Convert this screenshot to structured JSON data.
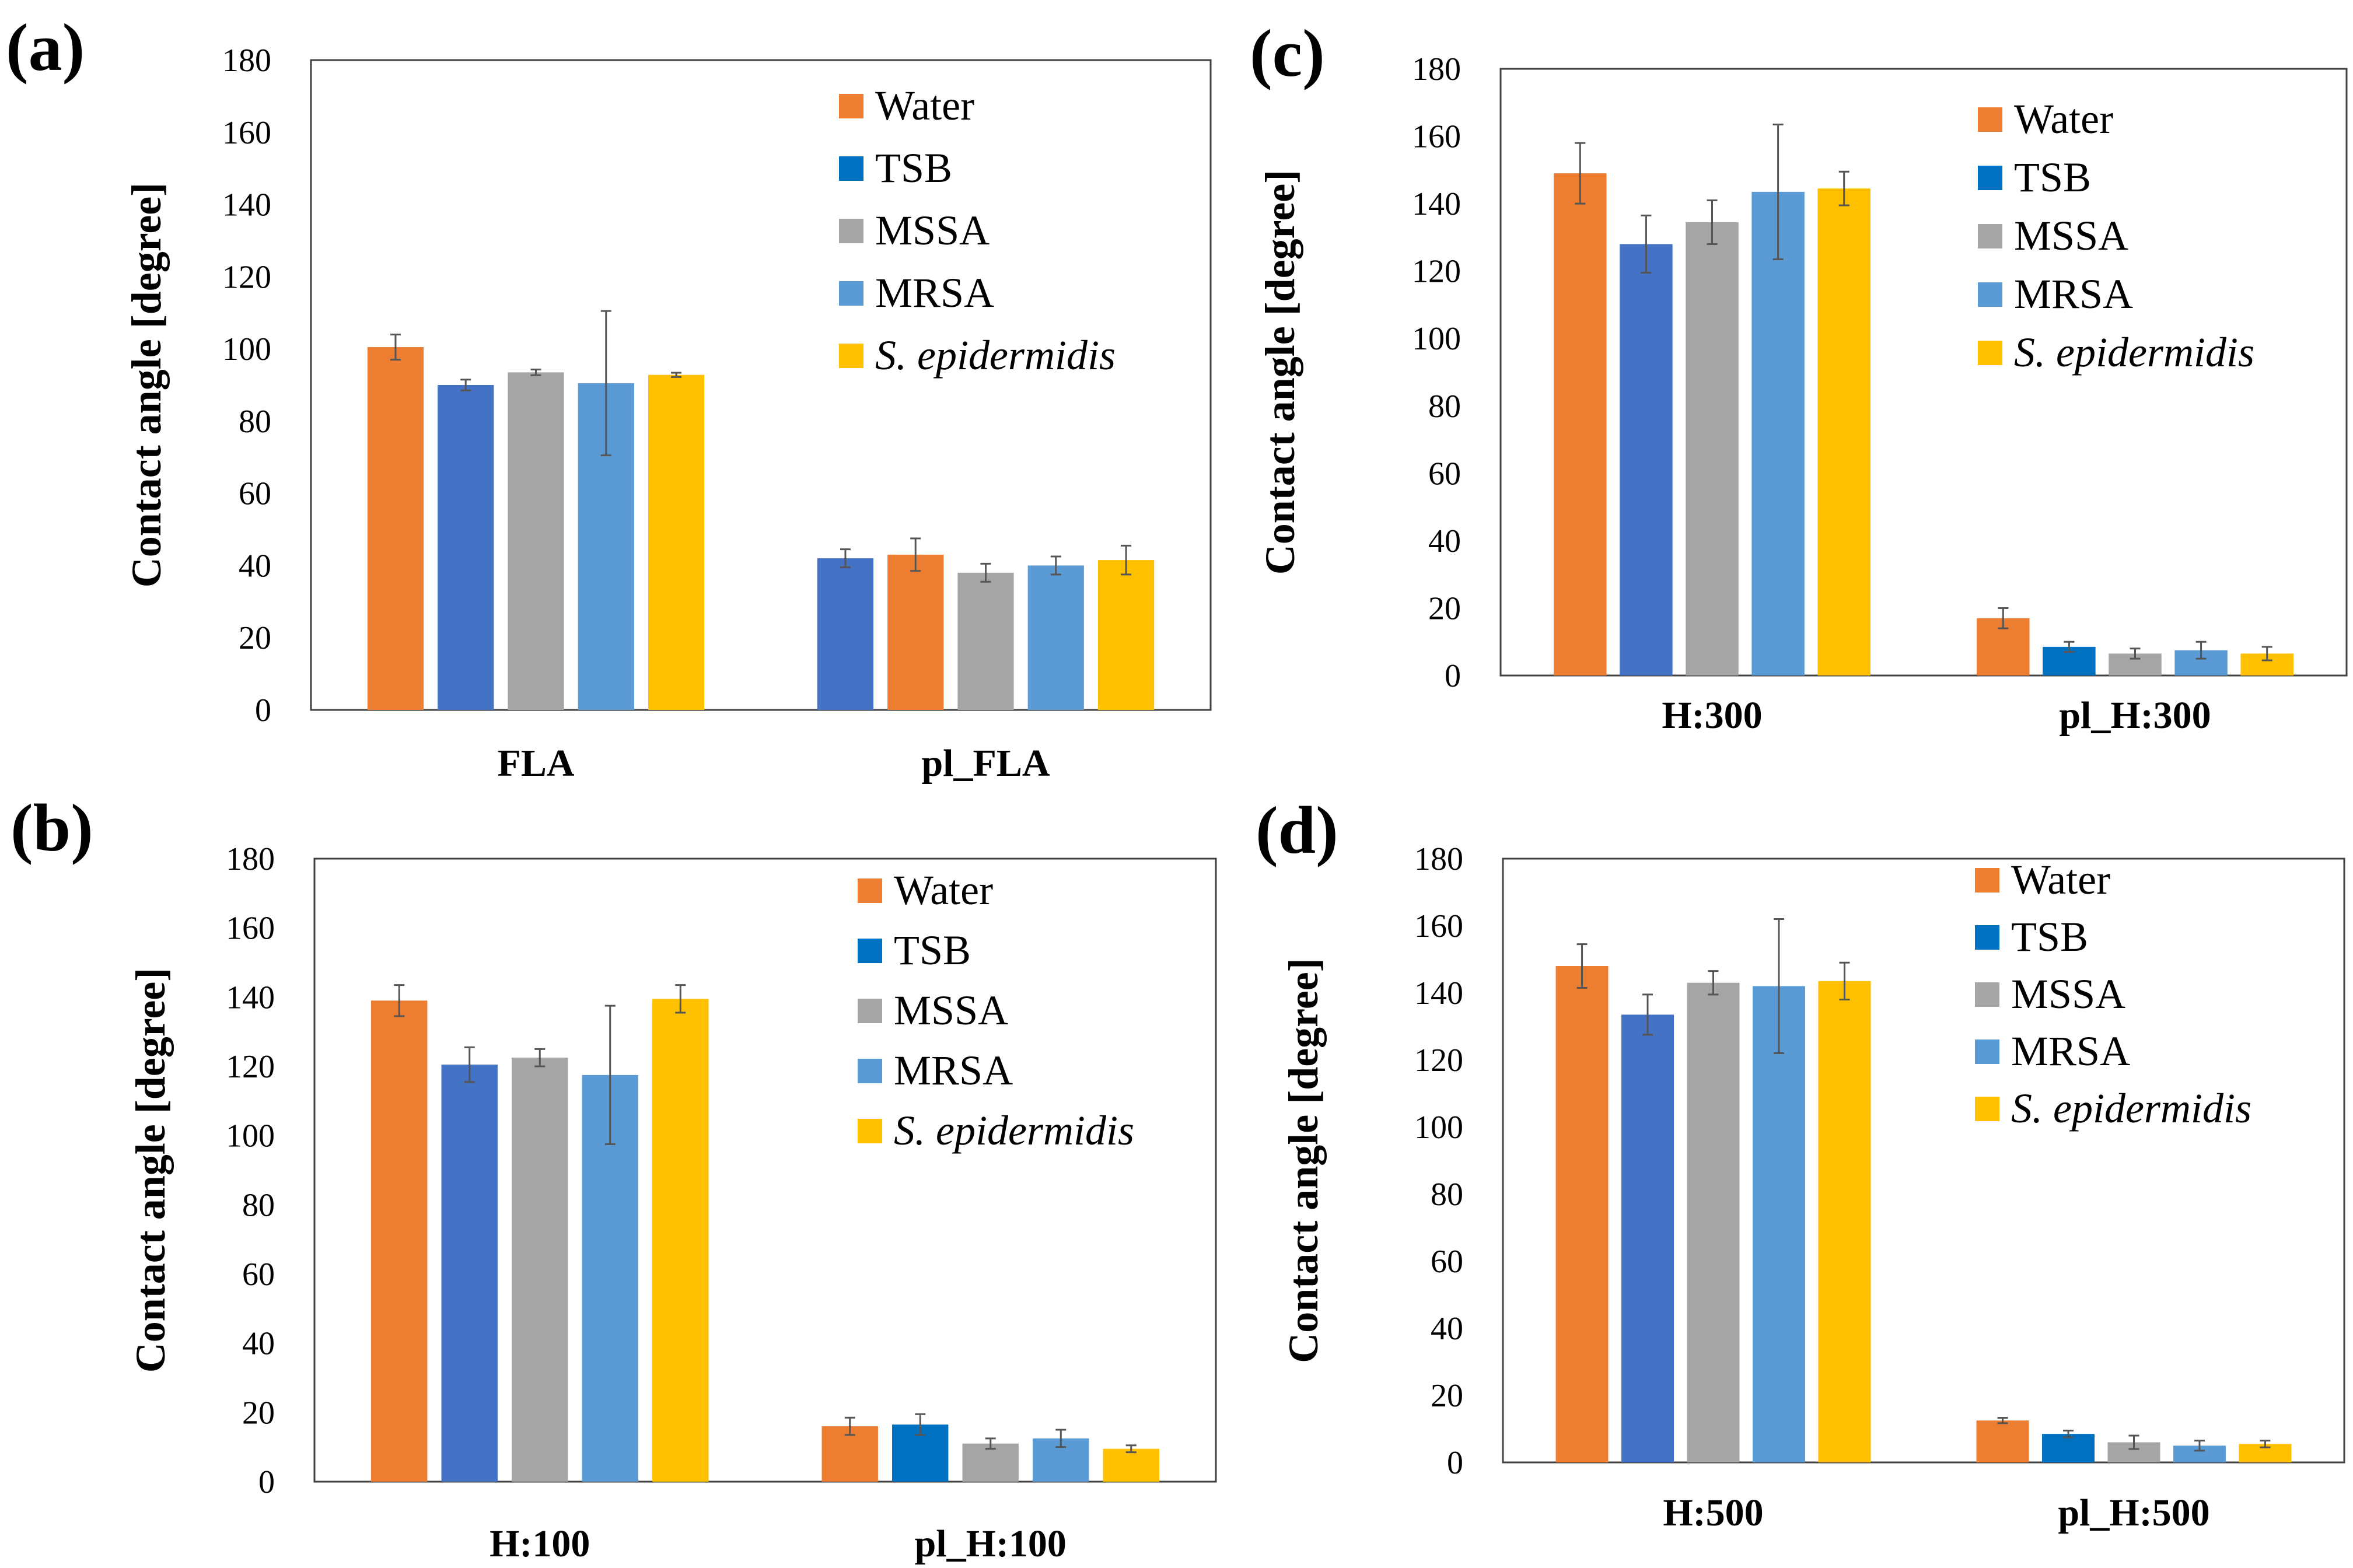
{
  "chart_data": [
    {
      "id": "a",
      "panel_label": "(a)",
      "type": "bar",
      "categories": [
        "FLA",
        "pl_FLA"
      ],
      "ylabel": "Contact angle [degree]",
      "xlabel": "",
      "ylim": [
        0,
        180
      ],
      "yticks": [
        0,
        20,
        40,
        60,
        80,
        100,
        120,
        140,
        160,
        180
      ],
      "legend_position": "top-right",
      "grid": false,
      "bars": [
        [
          {
            "series": "Water",
            "color": "#ED7D31",
            "value": 100.5,
            "error": 3.5
          },
          {
            "series": "TSB",
            "color": "#4472C4",
            "value": 90,
            "error": 1.5
          },
          {
            "series": "MSSA",
            "color": "#A5A5A5",
            "value": 93.5,
            "error": 0.8
          },
          {
            "series": "MRSA",
            "color": "#5B9BD5",
            "value": 90.5,
            "error": 20
          },
          {
            "series": "S. epidermidis",
            "color": "#FFC000",
            "value": 92.8,
            "error": 0.6
          }
        ],
        [
          {
            "series": "TSB",
            "color": "#4472C4",
            "value": 42,
            "error": 2.5
          },
          {
            "series": "Water",
            "color": "#ED7D31",
            "value": 43,
            "error": 4.5
          },
          {
            "series": "MSSA",
            "color": "#A5A5A5",
            "value": 38,
            "error": 2.5
          },
          {
            "series": "MRSA",
            "color": "#5B9BD5",
            "value": 40,
            "error": 2.5
          },
          {
            "series": "S. epidermidis",
            "color": "#FFC000",
            "value": 41.5,
            "error": 4
          }
        ]
      ],
      "legend": [
        {
          "label": "Water",
          "color": "#ED7D31",
          "italic": false
        },
        {
          "label": "TSB",
          "color": "#0070C0",
          "italic": false
        },
        {
          "label": "MSSA",
          "color": "#A5A5A5",
          "italic": false
        },
        {
          "label": "MRSA",
          "color": "#5B9BD5",
          "italic": false
        },
        {
          "label": "S. epidermidis",
          "color": "#FFC000",
          "italic": true
        }
      ]
    },
    {
      "id": "b",
      "panel_label": "(b)",
      "type": "bar",
      "categories": [
        "H:100",
        "pl_H:100"
      ],
      "ylabel": "Contact angle [degree]",
      "xlabel": "",
      "ylim": [
        0,
        180
      ],
      "yticks": [
        0,
        20,
        40,
        60,
        80,
        100,
        120,
        140,
        160,
        180
      ],
      "legend_position": "top-right",
      "grid": false,
      "bars": [
        [
          {
            "series": "Water",
            "color": "#ED7D31",
            "value": 139,
            "error": 4.5
          },
          {
            "series": "TSB",
            "color": "#4472C4",
            "value": 120.5,
            "error": 5
          },
          {
            "series": "MSSA",
            "color": "#A5A5A5",
            "value": 122.5,
            "error": 2.5
          },
          {
            "series": "MRSA",
            "color": "#5B9BD5",
            "value": 117.5,
            "error": 20
          },
          {
            "series": "S. epidermidis",
            "color": "#FFC000",
            "value": 139.5,
            "error": 4
          }
        ],
        [
          {
            "series": "Water",
            "color": "#ED7D31",
            "value": 16,
            "error": 2.5
          },
          {
            "series": "TSB",
            "color": "#0070C0",
            "value": 16.5,
            "error": 3
          },
          {
            "series": "MSSA",
            "color": "#A5A5A5",
            "value": 11,
            "error": 1.5
          },
          {
            "series": "MRSA",
            "color": "#5B9BD5",
            "value": 12.5,
            "error": 2.5
          },
          {
            "series": "S. epidermidis",
            "color": "#FFC000",
            "value": 9.5,
            "error": 1
          }
        ]
      ],
      "legend": [
        {
          "label": "Water",
          "color": "#ED7D31",
          "italic": false
        },
        {
          "label": "TSB",
          "color": "#0070C0",
          "italic": false
        },
        {
          "label": "MSSA",
          "color": "#A5A5A5",
          "italic": false
        },
        {
          "label": "MRSA",
          "color": "#5B9BD5",
          "italic": false
        },
        {
          "label": "S. epidermidis",
          "color": "#FFC000",
          "italic": true
        }
      ]
    },
    {
      "id": "c",
      "panel_label": "(c)",
      "type": "bar",
      "categories": [
        "H:300",
        "pl_H:300"
      ],
      "ylabel": "Contact angle [degree]",
      "xlabel": "",
      "ylim": [
        0,
        180
      ],
      "yticks": [
        0,
        20,
        40,
        60,
        80,
        100,
        120,
        140,
        160,
        180
      ],
      "legend_position": "top-right",
      "grid": false,
      "bars": [
        [
          {
            "series": "Water",
            "color": "#ED7D31",
            "value": 149,
            "error": 9
          },
          {
            "series": "TSB",
            "color": "#4472C4",
            "value": 128,
            "error": 8.5
          },
          {
            "series": "MSSA",
            "color": "#A5A5A5",
            "value": 134.5,
            "error": 6.5
          },
          {
            "series": "MRSA",
            "color": "#5B9BD5",
            "value": 143.5,
            "error": 20
          },
          {
            "series": "S. epidermidis",
            "color": "#FFC000",
            "value": 144.5,
            "error": 5
          }
        ],
        [
          {
            "series": "Water",
            "color": "#ED7D31",
            "value": 17,
            "error": 3
          },
          {
            "series": "TSB",
            "color": "#0070C0",
            "value": 8.5,
            "error": 1.5
          },
          {
            "series": "MSSA",
            "color": "#A5A5A5",
            "value": 6.5,
            "error": 1.5
          },
          {
            "series": "MRSA",
            "color": "#5B9BD5",
            "value": 7.5,
            "error": 2.5
          },
          {
            "series": "S. epidermidis",
            "color": "#FFC000",
            "value": 6.5,
            "error": 2
          }
        ]
      ],
      "legend": [
        {
          "label": "Water",
          "color": "#ED7D31",
          "italic": false
        },
        {
          "label": "TSB",
          "color": "#0070C0",
          "italic": false
        },
        {
          "label": "MSSA",
          "color": "#A5A5A5",
          "italic": false
        },
        {
          "label": "MRSA",
          "color": "#5B9BD5",
          "italic": false
        },
        {
          "label": "S. epidermidis",
          "color": "#FFC000",
          "italic": true
        }
      ]
    },
    {
      "id": "d",
      "panel_label": "(d)",
      "type": "bar",
      "categories": [
        "H:500",
        "pl_H:500"
      ],
      "ylabel": "Contact angle [degree]",
      "xlabel": "",
      "ylim": [
        0,
        180
      ],
      "yticks": [
        0,
        20,
        40,
        60,
        80,
        100,
        120,
        140,
        160,
        180
      ],
      "legend_position": "top-right",
      "grid": false,
      "bars": [
        [
          {
            "series": "Water",
            "color": "#ED7D31",
            "value": 148,
            "error": 6.5
          },
          {
            "series": "TSB",
            "color": "#4472C4",
            "value": 133.5,
            "error": 6
          },
          {
            "series": "MSSA",
            "color": "#A5A5A5",
            "value": 143,
            "error": 3.5
          },
          {
            "series": "MRSA",
            "color": "#5B9BD5",
            "value": 142,
            "error": 20
          },
          {
            "series": "S. epidermidis",
            "color": "#FFC000",
            "value": 143.5,
            "error": 5.5
          }
        ],
        [
          {
            "series": "Water",
            "color": "#ED7D31",
            "value": 12.5,
            "error": 0.8
          },
          {
            "series": "TSB",
            "color": "#0070C0",
            "value": 8.5,
            "error": 1
          },
          {
            "series": "MSSA",
            "color": "#A5A5A5",
            "value": 6,
            "error": 2
          },
          {
            "series": "MRSA",
            "color": "#5B9BD5",
            "value": 5,
            "error": 1.5
          },
          {
            "series": "S. epidermidis",
            "color": "#FFC000",
            "value": 5.5,
            "error": 1
          }
        ]
      ],
      "legend": [
        {
          "label": "Water",
          "color": "#ED7D31",
          "italic": false
        },
        {
          "label": "TSB",
          "color": "#0070C0",
          "italic": false
        },
        {
          "label": "MSSA",
          "color": "#A5A5A5",
          "italic": false
        },
        {
          "label": "MRSA",
          "color": "#5B9BD5",
          "italic": false
        },
        {
          "label": "S. epidermidis",
          "color": "#FFC000",
          "italic": true
        }
      ]
    }
  ]
}
